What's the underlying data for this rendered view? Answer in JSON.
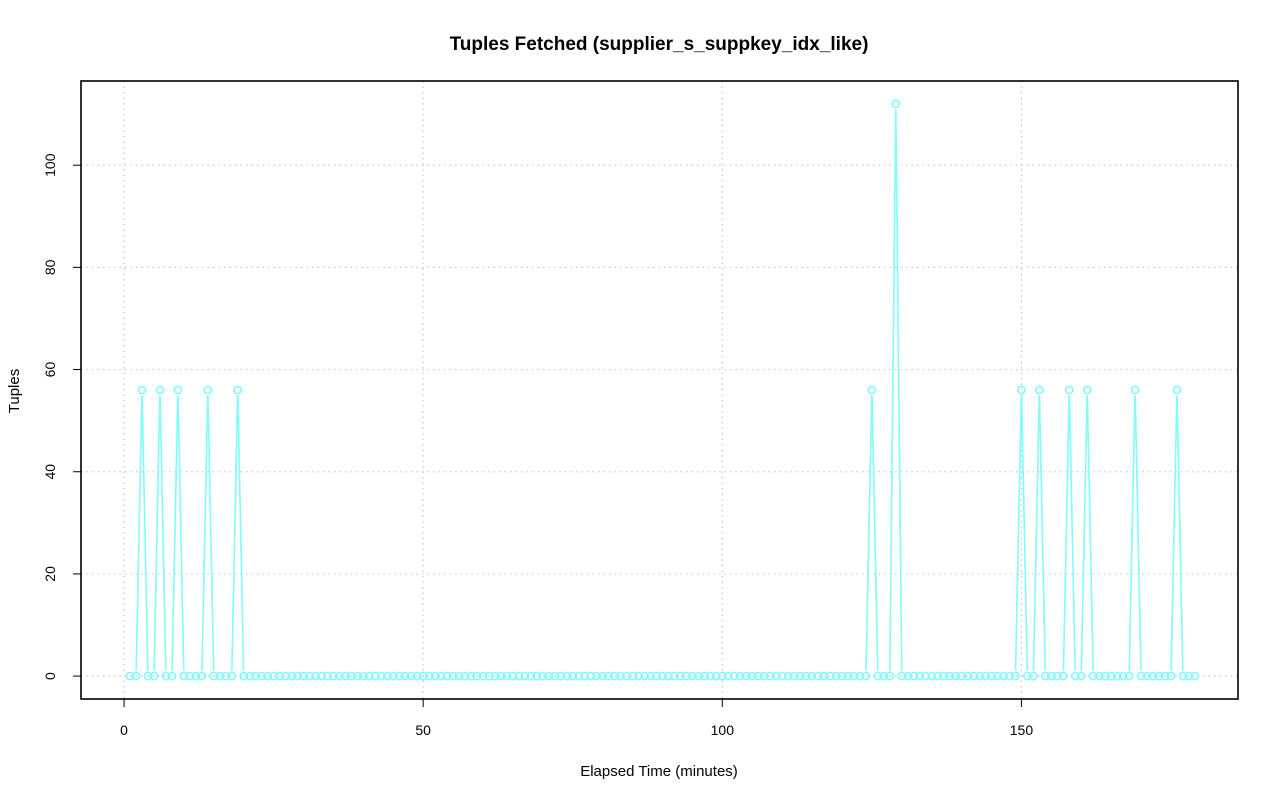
{
  "chart_data": {
    "type": "line",
    "title": "Tuples Fetched (supplier_s_suppkey_idx_like)",
    "xlabel": "Elapsed Time (minutes)",
    "ylabel": "Tuples",
    "xlim": [
      -7.2,
      186.2
    ],
    "ylim": [
      -4.48,
      116.48
    ],
    "x_ticks": [
      0,
      50,
      100,
      150
    ],
    "y_ticks": [
      0,
      20,
      40,
      60,
      80,
      100
    ],
    "grid": true,
    "series_color": "#7ffbfb",
    "series": [
      {
        "x_start": 1,
        "x_end": 179,
        "baseline": 0,
        "points": [
          [
            3,
            56
          ],
          [
            6,
            56
          ],
          [
            9,
            56
          ],
          [
            14,
            56
          ],
          [
            19,
            56
          ],
          [
            125,
            56
          ],
          [
            129,
            112
          ],
          [
            150,
            56
          ],
          [
            153,
            56
          ],
          [
            158,
            56
          ],
          [
            161,
            56
          ],
          [
            169,
            56
          ],
          [
            176,
            56
          ]
        ]
      }
    ]
  }
}
